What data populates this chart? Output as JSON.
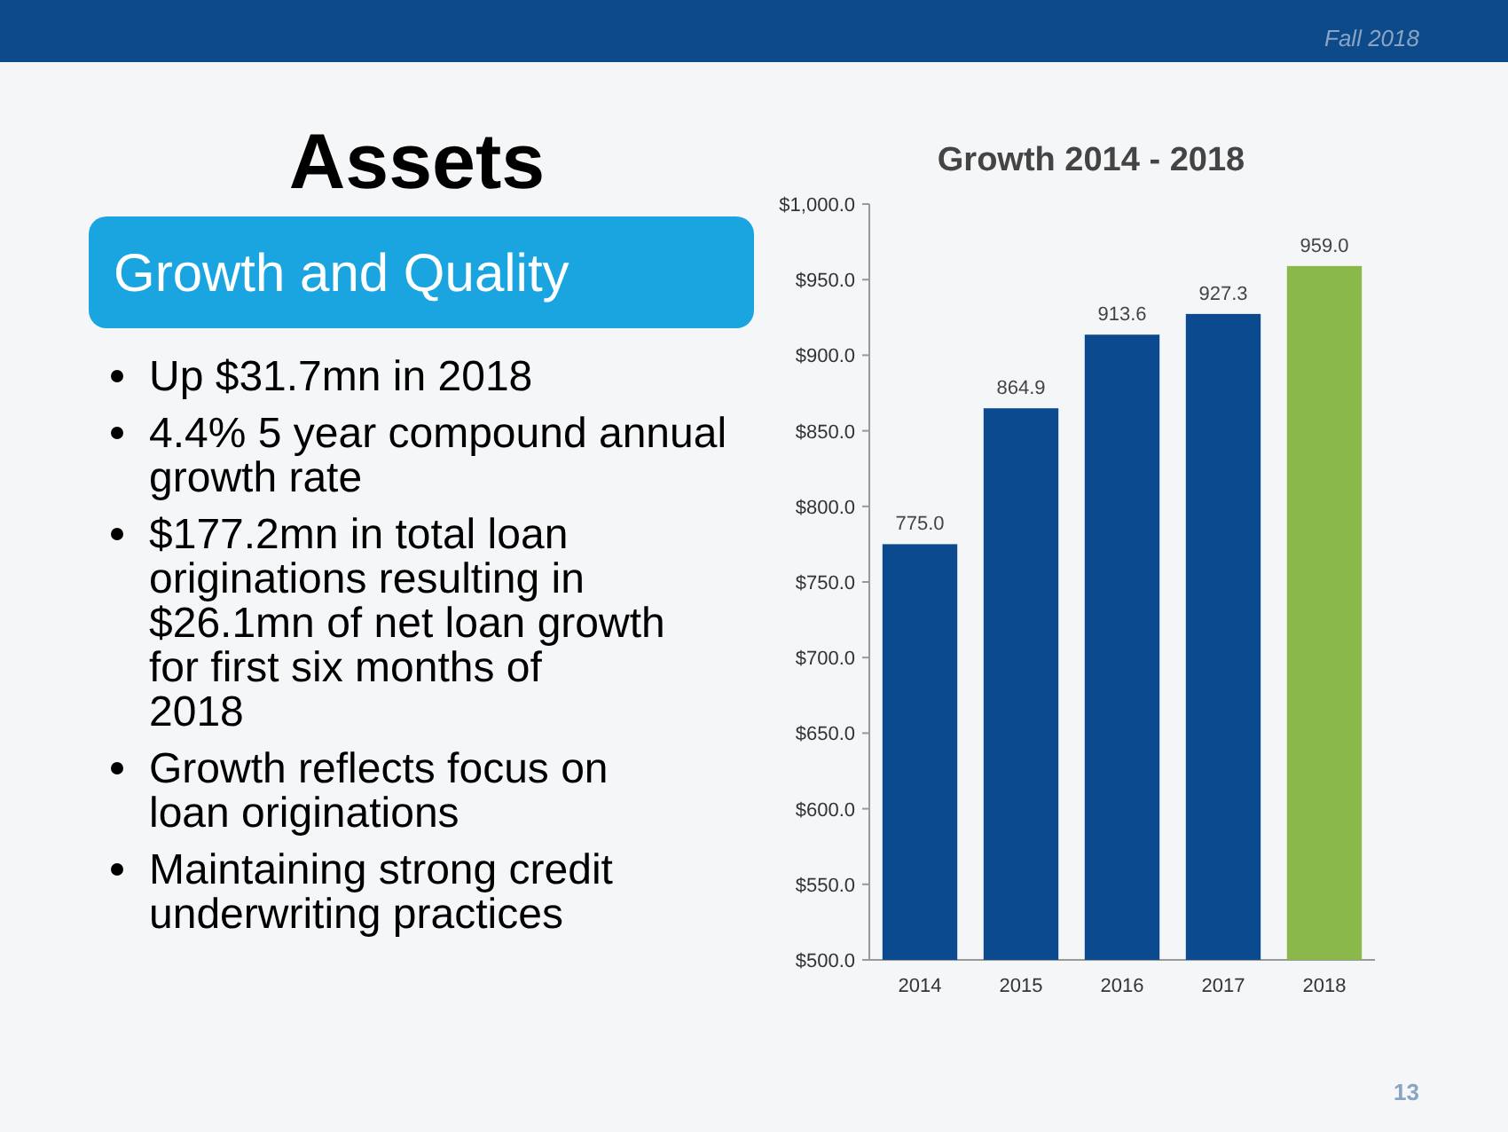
{
  "chart_data": {
    "type": "bar",
    "title": "Growth 2014 - 2018",
    "categories": [
      "2014",
      "2015",
      "2016",
      "2017",
      "2018"
    ],
    "values": [
      775.0,
      864.9,
      913.6,
      927.3,
      959.0
    ],
    "colors": [
      "#0b4a8e",
      "#0b4a8e",
      "#0b4a8e",
      "#0b4a8e",
      "#8ab84a"
    ],
    "value_labels": [
      "775.0",
      "864.9",
      "913.6",
      "927.3",
      "959.0"
    ],
    "ylim": [
      500,
      1000
    ],
    "yticks": [
      {
        "value": 500,
        "label": "$500.0"
      },
      {
        "value": 550,
        "label": "$550.0"
      },
      {
        "value": 600,
        "label": "$600.0"
      },
      {
        "value": 650,
        "label": "$650.0"
      },
      {
        "value": 700,
        "label": "$700.0"
      },
      {
        "value": 750,
        "label": "$750.0"
      },
      {
        "value": 800,
        "label": "$800.0"
      },
      {
        "value": 850,
        "label": "$850.0"
      },
      {
        "value": 900,
        "label": "$900.0"
      },
      {
        "value": 950,
        "label": "$950.0"
      },
      {
        "value": 1000,
        "label": "$1,000.0"
      }
    ],
    "annotations": [
      "Assets",
      "Growth and Quality",
      "Up $31.7mn in 2018",
      "4.4% 5 year compound annual growth rate",
      "$177.2mn in total loan originations resulting in $26.1mn of net loan growth for first six months of 2018",
      "Growth reflects focus on loan originations",
      "Maintaining strong credit underwriting practices",
      "Fall 2018",
      "13"
    ]
  }
}
